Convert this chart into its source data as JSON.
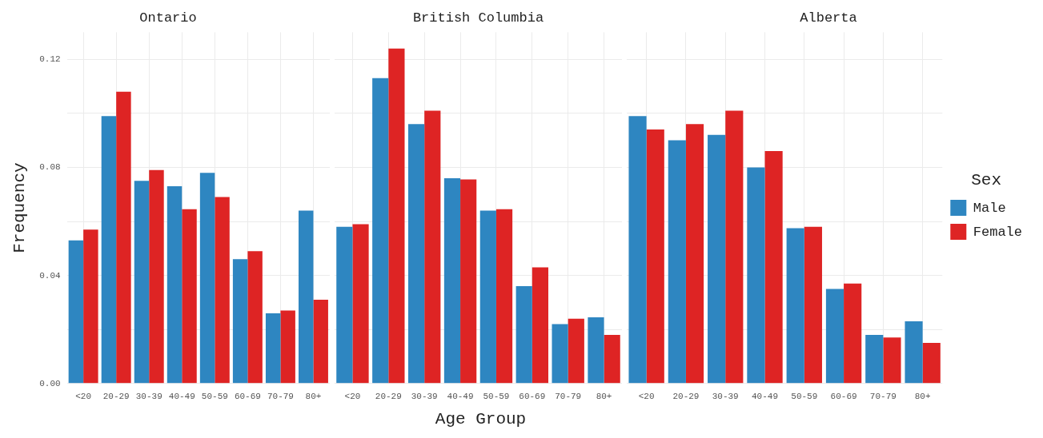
{
  "chart_data": [
    {
      "type": "bar",
      "title": "Ontario",
      "ylabel": "Frequency",
      "categories": [
        "<20",
        "20-29",
        "30-39",
        "40-49",
        "50-59",
        "60-69",
        "70-79",
        "80+"
      ],
      "series": [
        {
          "color": "#2e86c1",
          "values": [
            0.053,
            0.099,
            0.075,
            0.073,
            0.078,
            0.046,
            0.026,
            0.064
          ]
        },
        {
          "color": "#de2424",
          "values": [
            0.057,
            0.108,
            0.079,
            0.0645,
            0.069,
            0.049,
            0.027,
            0.031
          ]
        }
      ],
      "ylim": [
        0,
        0.13
      ],
      "yticks": [
        {
          "value": 0,
          "label": "0.00"
        },
        {
          "value": 0.02,
          "label": null
        },
        {
          "value": 0.04,
          "label": "0.04"
        },
        {
          "value": 0.06,
          "label": null
        },
        {
          "value": 0.08,
          "label": "0.08"
        },
        {
          "value": 0.1,
          "label": null
        },
        {
          "value": 0.12,
          "label": "0.12"
        }
      ],
      "grid": true,
      "legend": false
    },
    {
      "type": "bar",
      "title": "British Columbia",
      "xlabel": "Age Group",
      "categories": [
        "<20",
        "20-29",
        "30-39",
        "40-49",
        "50-59",
        "60-69",
        "70-79",
        "80+"
      ],
      "series": [
        {
          "color": "#2e86c1",
          "values": [
            0.058,
            0.113,
            0.096,
            0.076,
            0.064,
            0.036,
            0.022,
            0.0245
          ]
        },
        {
          "color": "#de2424",
          "values": [
            0.059,
            0.124,
            0.101,
            0.0755,
            0.0645,
            0.043,
            0.024,
            0.018
          ]
        }
      ],
      "ylim": [
        0,
        0.13
      ],
      "yticks": [
        {
          "value": 0,
          "label": null
        },
        {
          "value": 0.02,
          "label": null
        },
        {
          "value": 0.04,
          "label": null
        },
        {
          "value": 0.06,
          "label": null
        },
        {
          "value": 0.08,
          "label": null
        },
        {
          "value": 0.1,
          "label": null
        },
        {
          "value": 0.12,
          "label": null
        }
      ],
      "tick_labels": "x",
      "grid": true,
      "legend": false
    },
    {
      "type": "bar",
      "title": "Alberta",
      "legend_title": "Sex",
      "categories": [
        "<20",
        "20-29",
        "30-39",
        "40-49",
        "50-59",
        "60-69",
        "70-79",
        "80+"
      ],
      "series": [
        {
          "name": "Male",
          "color": "#2e86c1",
          "values": [
            0.099,
            0.09,
            0.092,
            0.08,
            0.0575,
            0.035,
            0.018,
            0.023
          ]
        },
        {
          "name": "Female",
          "color": "#de2424",
          "values": [
            0.094,
            0.096,
            0.101,
            0.086,
            0.058,
            0.037,
            0.017,
            0.015
          ]
        }
      ],
      "ylim": [
        0,
        0.13
      ],
      "yticks": [
        {
          "value": 0,
          "label": null
        },
        {
          "value": 0.02,
          "label": null
        },
        {
          "value": 0.04,
          "label": null
        },
        {
          "value": 0.06,
          "label": null
        },
        {
          "value": 0.08,
          "label": null
        },
        {
          "value": 0.1,
          "label": null
        },
        {
          "value": 0.12,
          "label": null
        }
      ],
      "tick_labels": "x",
      "grid": true,
      "legend": "right"
    }
  ]
}
